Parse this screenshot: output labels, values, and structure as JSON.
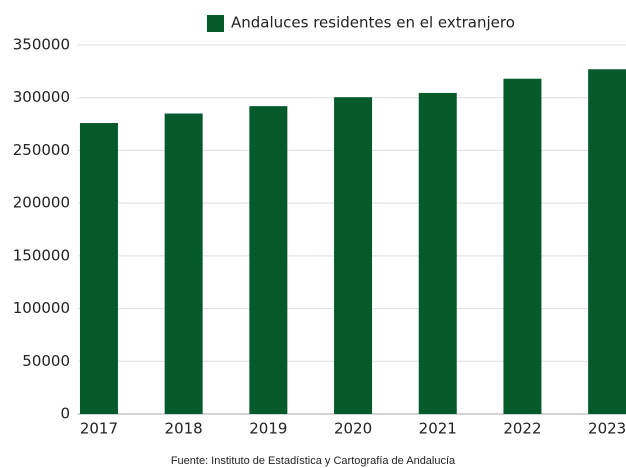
{
  "chart_data": {
    "type": "bar",
    "categories": [
      "2017",
      "2018",
      "2019",
      "2020",
      "2021",
      "2022",
      "2023"
    ],
    "series": [
      {
        "name": "Andaluces residentes en el extranjero",
        "color": "#055a2c",
        "values": [
          276000,
          285000,
          292000,
          300500,
          304500,
          318000,
          327000
        ]
      }
    ],
    "ylim": [
      0,
      350000
    ],
    "yticks": [
      0,
      50000,
      100000,
      150000,
      200000,
      250000,
      300000,
      350000
    ],
    "grid": true,
    "legend": "top",
    "source": "Fuente: Instituto de Estadística y Cartografía de Andalucía"
  }
}
